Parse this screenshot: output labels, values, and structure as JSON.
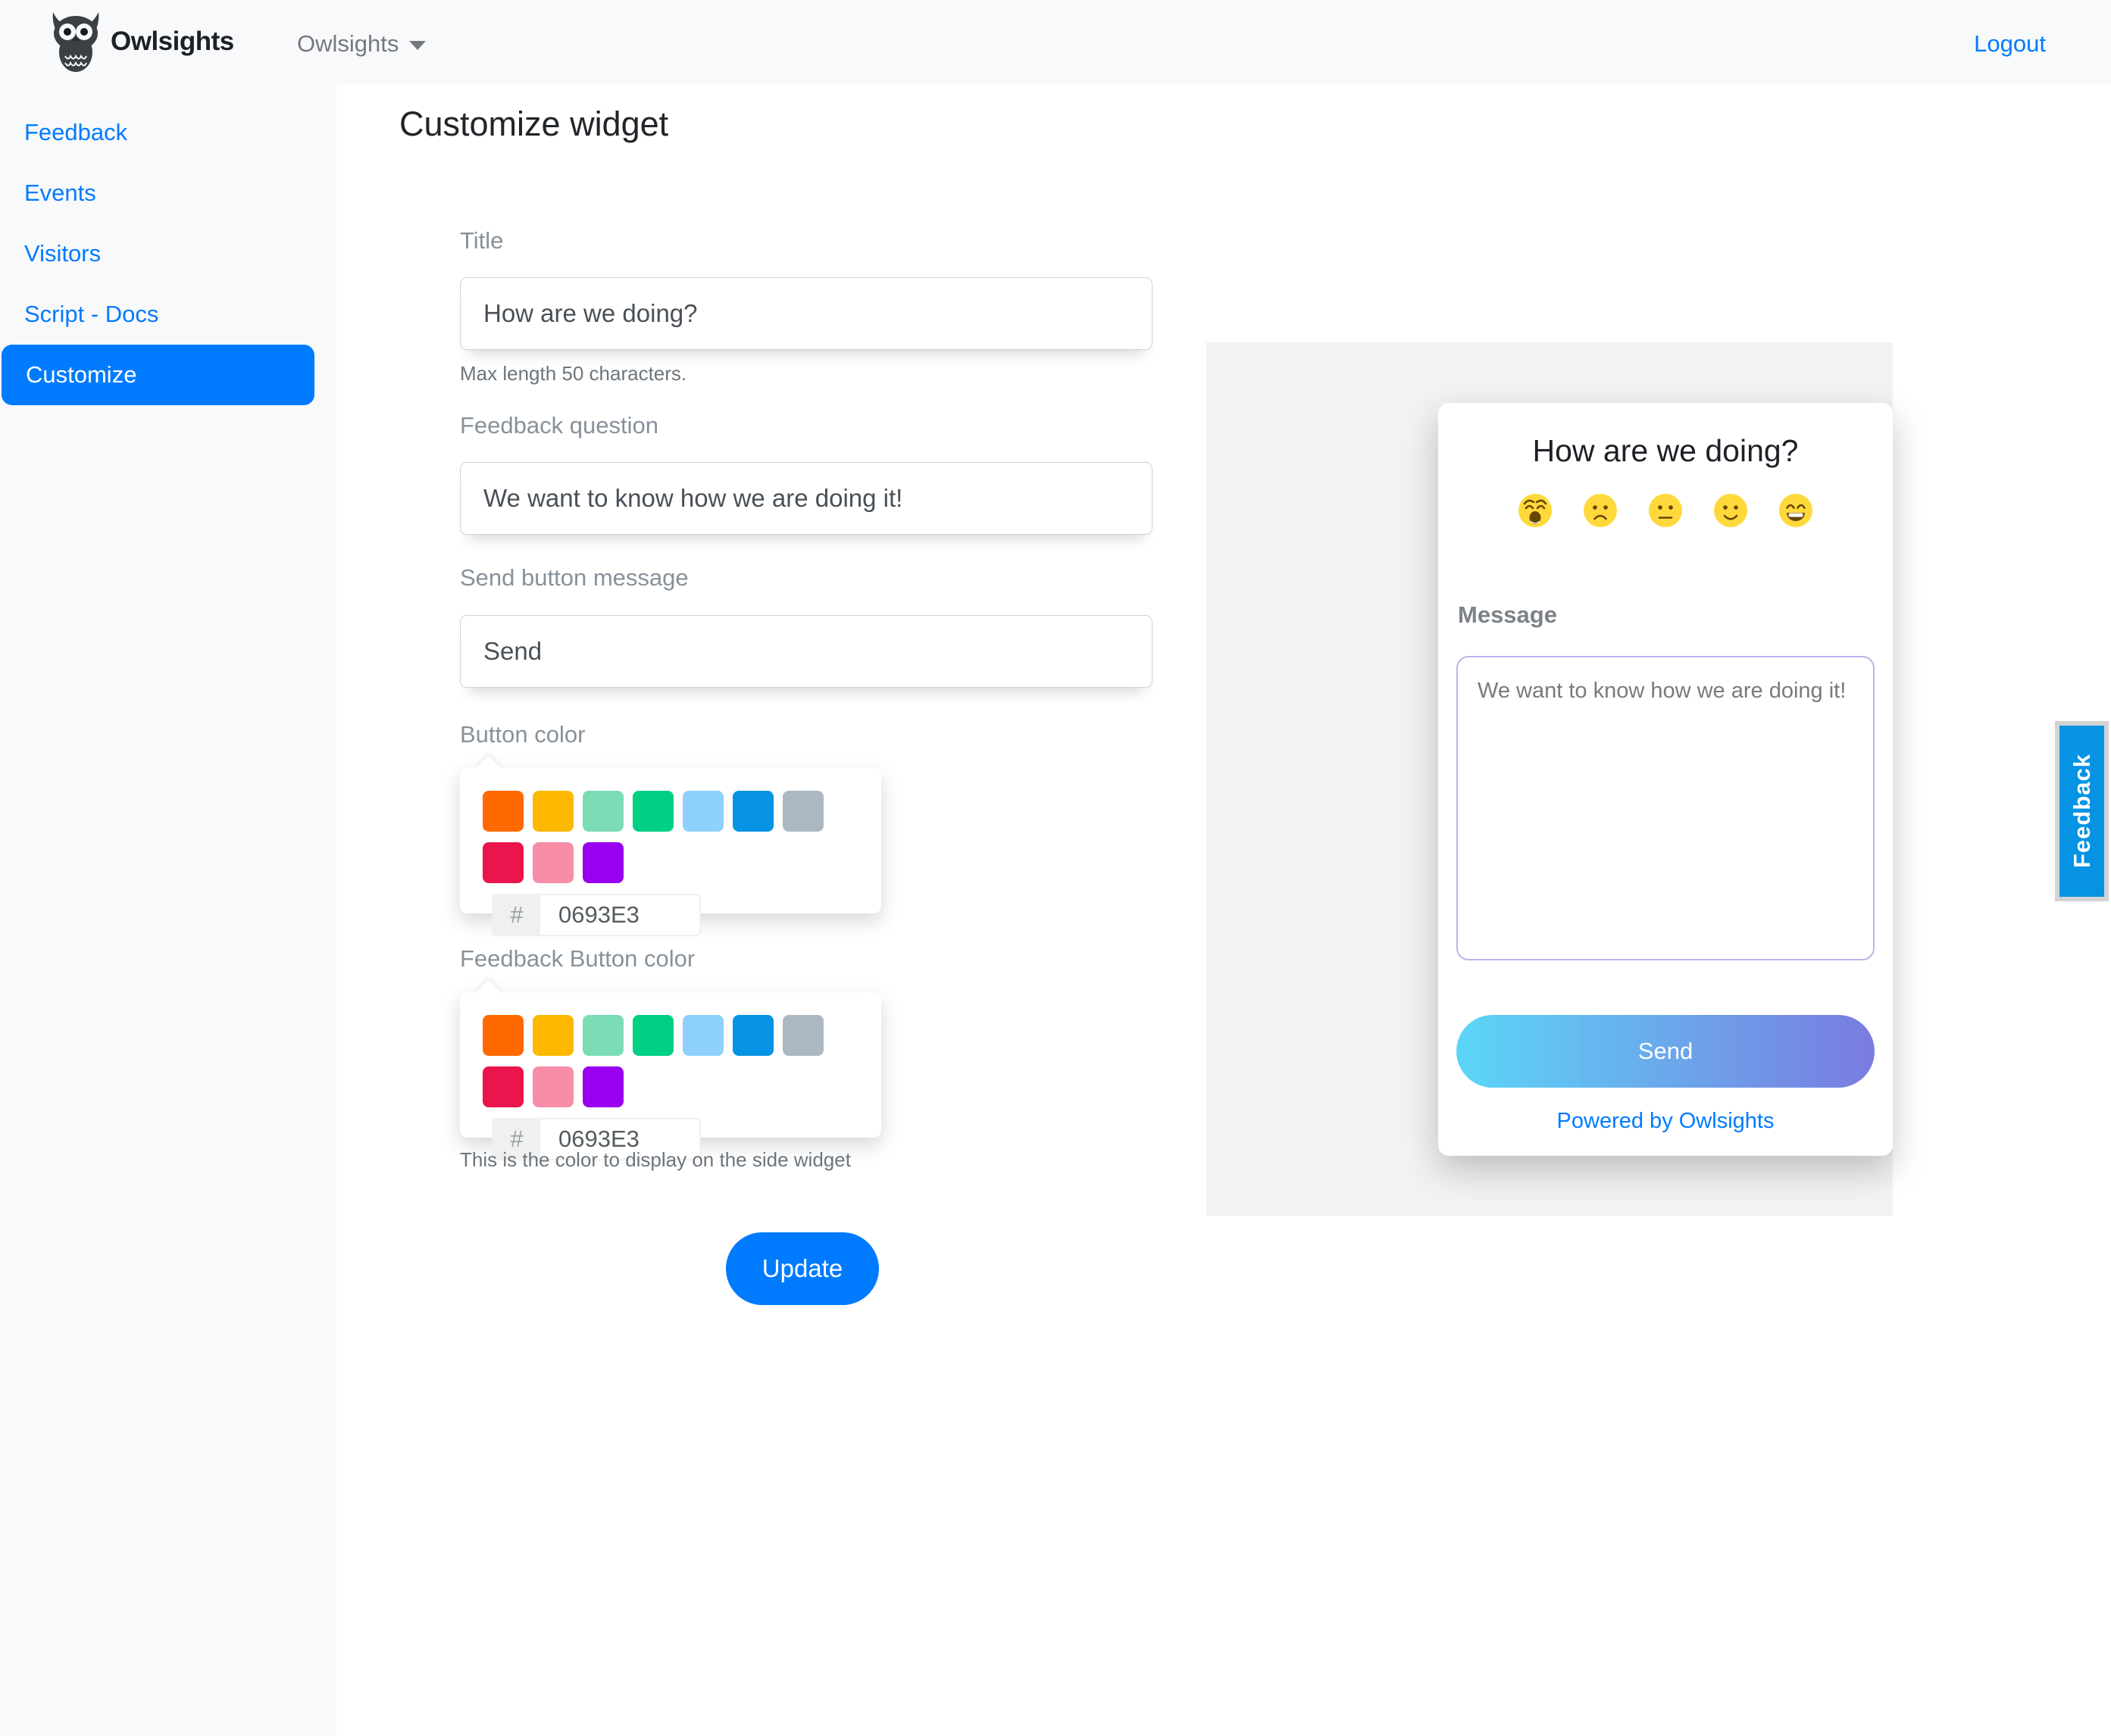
{
  "navbar": {
    "brand": "Owlsights",
    "menu_label": "Owlsights",
    "logout_label": "Logout"
  },
  "sidebar": {
    "items": [
      {
        "label": "Feedback",
        "active": false
      },
      {
        "label": "Events",
        "active": false
      },
      {
        "label": "Visitors",
        "active": false
      },
      {
        "label": "Script - Docs",
        "active": false
      },
      {
        "label": "Customize",
        "active": true
      }
    ]
  },
  "main": {
    "title": "Customize widget",
    "fields": {
      "title": {
        "label": "Title",
        "value": "How are we doing?",
        "help": "Max length 50 characters."
      },
      "question": {
        "label": "Feedback question",
        "value": "We want to know how we are doing it!"
      },
      "send_button": {
        "label": "Send button message",
        "value": "Send"
      },
      "button_color": {
        "label": "Button color",
        "hex_prefix": "#",
        "hex_value": "0693E3"
      },
      "feedback_button_color": {
        "label": "Feedback Button color",
        "hex_prefix": "#",
        "hex_value": "0693E3",
        "help": "This is the color to display on the side widget"
      }
    },
    "swatch_colors": [
      "#FF6900",
      "#FCB900",
      "#7BDCB5",
      "#00D084",
      "#8ED1FC",
      "#0693E3",
      "#ABB8C3",
      "#EB144C",
      "#F78DA7",
      "#9900EF"
    ],
    "update_label": "Update"
  },
  "preview": {
    "title": "How are we doing?",
    "emojis": [
      "weary-face",
      "frowning-face",
      "neutral-face",
      "slightly-smiling-face",
      "grinning-face"
    ],
    "message_label": "Message",
    "message_placeholder": "We want to know how we are doing it!",
    "send_label": "Send",
    "powered_by": "Powered by Owlsights"
  },
  "feedback_tab": {
    "label": "Feedback"
  },
  "colors": {
    "accent_blue": "#007bff",
    "selected_widget_color": "#0693E3",
    "send_gradient_start": "#5bd6f7",
    "send_gradient_end": "#7a7be0",
    "panel_gray": "#f2f2f3",
    "navbar_gray": "#f8f9fa"
  }
}
